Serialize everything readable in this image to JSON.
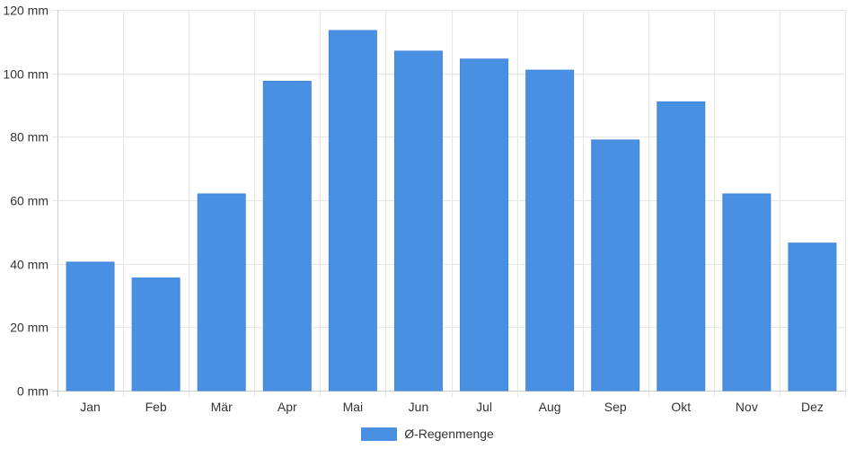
{
  "chart_data": {
    "type": "bar",
    "categories": [
      "Jan",
      "Feb",
      "Mär",
      "Apr",
      "Mai",
      "Jun",
      "Jul",
      "Aug",
      "Sep",
      "Okt",
      "Nov",
      "Dez"
    ],
    "series": [
      {
        "name": "Ø-Regenmenge",
        "values": [
          40.5,
          35.5,
          62,
          97.5,
          113.5,
          107,
          104.5,
          101,
          79,
          91,
          62,
          46.5
        ],
        "color": "#4a90e2"
      }
    ],
    "ylim": [
      0,
      120
    ],
    "yticks": [
      0,
      20,
      40,
      60,
      80,
      100,
      120
    ],
    "ytick_suffix": " mm",
    "grid": true,
    "legend_position": "bottom"
  }
}
